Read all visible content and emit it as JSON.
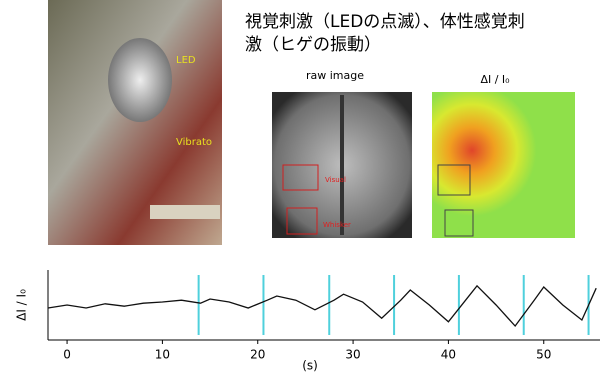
{
  "title": [
    "視覚刺激（LEDの点滅）、体性感覚刺",
    "激（ヒゲの振動）"
  ],
  "photo": {
    "labels": [
      "LED",
      "Vibrato"
    ]
  },
  "raw_image": {
    "label": "raw image",
    "regions": [
      "Visual",
      "Whisker"
    ]
  },
  "heatmap": {
    "label": "ΔI / I₀"
  },
  "chart_data": {
    "type": "line",
    "ylabel": "ΔI / I₀",
    "xlabel": "(s)",
    "color": "#111111",
    "stimulus_color": "#4fd0dc",
    "x": [
      -2,
      0,
      2,
      4,
      6,
      8,
      10,
      12,
      14,
      15,
      17,
      19,
      21,
      22,
      24,
      26,
      28,
      29,
      31,
      33,
      35,
      36,
      38,
      40,
      42,
      43,
      45,
      47,
      49,
      50,
      52,
      54,
      55.5
    ],
    "values": [
      0.45,
      0.5,
      0.45,
      0.52,
      0.48,
      0.53,
      0.55,
      0.58,
      0.53,
      0.6,
      0.55,
      0.45,
      0.58,
      0.65,
      0.58,
      0.42,
      0.58,
      0.68,
      0.55,
      0.28,
      0.58,
      0.75,
      0.5,
      0.22,
      0.62,
      0.82,
      0.5,
      0.15,
      0.58,
      0.8,
      0.5,
      0.25,
      0.78
    ],
    "stimulus_times": [
      13.8,
      20.6,
      27.5,
      34.3,
      41.1,
      47.9,
      54.7
    ],
    "xlim": [
      -2,
      55.9
    ],
    "xticks": [
      0,
      10,
      20,
      30,
      40,
      50
    ],
    "ylim": [
      0,
      1
    ]
  }
}
